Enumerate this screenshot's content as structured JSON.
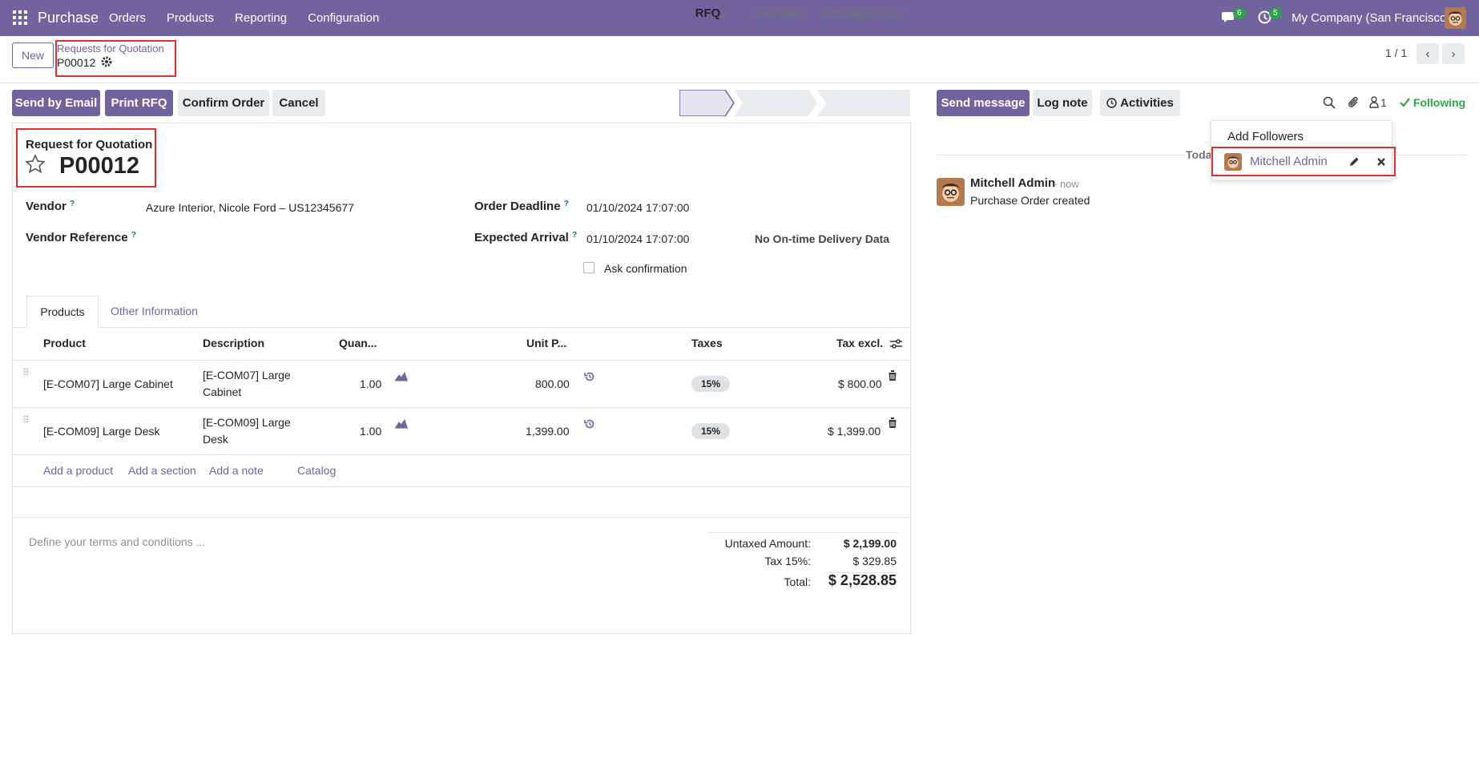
{
  "navbar": {
    "brand": "Purchase",
    "menu": [
      "Orders",
      "Products",
      "Reporting",
      "Configuration"
    ],
    "chat_count": "6",
    "activity_count": "5",
    "company": "My Company (San Francisco)"
  },
  "control": {
    "new_label": "New",
    "breadcrumb_parent": "Requests for Quotation",
    "breadcrumb_current": "P00012",
    "pager": "1 / 1"
  },
  "actions": {
    "send_email": "Send by Email",
    "print_rfq": "Print RFQ",
    "confirm": "Confirm Order",
    "cancel": "Cancel"
  },
  "statusbar": [
    "RFQ",
    "RFQ Sent",
    "Purchase Order"
  ],
  "form": {
    "title_label": "Request for Quotation",
    "name": "P00012",
    "vendor_label": "Vendor",
    "vendor_value": "Azure Interior, Nicole Ford – US12345677",
    "vendor_ref_label": "Vendor Reference",
    "order_deadline_label": "Order Deadline",
    "order_deadline_value": "01/10/2024 17:07:00",
    "expected_arrival_label": "Expected Arrival",
    "expected_arrival_value": "01/10/2024 17:07:00",
    "delivery_data": "No On-time Delivery Data",
    "ask_confirmation": "Ask confirmation"
  },
  "tabs": [
    "Products",
    "Other Information"
  ],
  "table": {
    "headers": [
      "Product",
      "Description",
      "Quan...",
      "Unit P...",
      "Taxes",
      "Tax excl."
    ],
    "rows": [
      {
        "product": "[E-COM07] Large Cabinet",
        "desc1": "[E-COM07] Large",
        "desc2": "Cabinet",
        "qty": "1.00",
        "price": "800.00",
        "tax": "15%",
        "subtotal": "$ 800.00"
      },
      {
        "product": "[E-COM09] Large Desk",
        "desc1": "[E-COM09] Large",
        "desc2": "Desk",
        "qty": "1.00",
        "price": "1,399.00",
        "tax": "15%",
        "subtotal": "$ 1,399.00"
      }
    ],
    "add_links": [
      "Add a product",
      "Add a section",
      "Add a note",
      "Catalog"
    ]
  },
  "terms_placeholder": "Define your terms and conditions ...",
  "totals": {
    "untaxed_label": "Untaxed Amount:",
    "untaxed_value": "$ 2,199.00",
    "tax_label": "Tax 15%:",
    "tax_value": "$ 329.85",
    "total_label": "Total:",
    "total_value": "$ 2,528.85"
  },
  "chatter": {
    "send_message": "Send message",
    "log_note": "Log note",
    "activities": "Activities",
    "follower_count": "1",
    "following": "Following",
    "add_followers": "Add Followers",
    "follower_name": "Mitchell Admin",
    "today": "Today",
    "author": "Mitchell Admin",
    "time": "- now",
    "message": "Purchase Order created"
  },
  "colors": {
    "primary": "#71639e",
    "following": "#28a745",
    "highlight": "#e03131"
  }
}
